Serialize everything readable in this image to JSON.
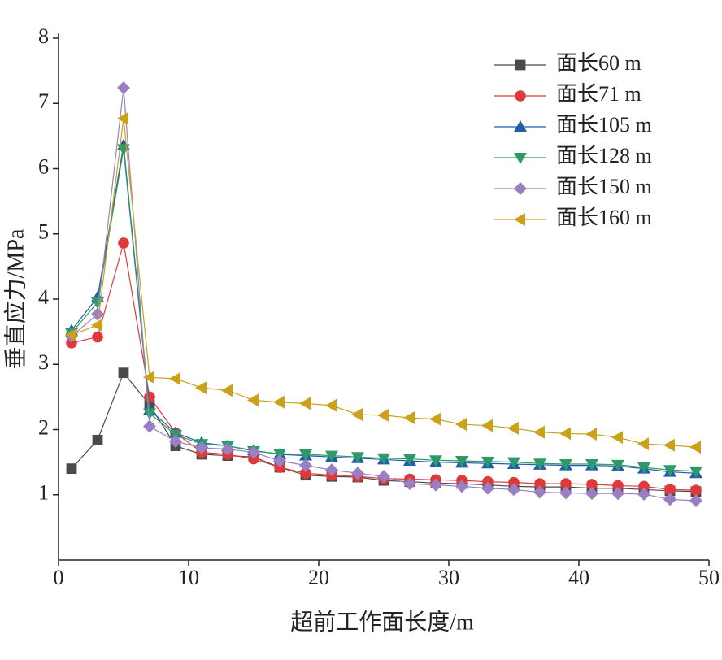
{
  "chart_data": {
    "type": "line",
    "xlabel": "超前工作面长度/m",
    "ylabel": "垂直应力/MPa",
    "x": [
      1,
      3,
      5,
      7,
      9,
      11,
      13,
      15,
      17,
      19,
      21,
      23,
      25,
      27,
      29,
      31,
      33,
      35,
      37,
      39,
      41,
      43,
      45,
      47,
      49
    ],
    "xlim": [
      0,
      50
    ],
    "xticks": [
      0,
      10,
      20,
      30,
      40,
      50
    ],
    "ylim": [
      0,
      8
    ],
    "yticks": [
      1,
      2,
      3,
      4,
      5,
      6,
      7,
      8
    ],
    "legend": "upper right",
    "series": [
      {
        "name": "面长60 m",
        "color": "#4a4a4a",
        "marker": "square",
        "values": [
          1.4,
          1.84,
          2.87,
          2.38,
          1.75,
          1.62,
          1.6,
          1.58,
          1.42,
          1.3,
          1.28,
          1.27,
          1.22,
          1.2,
          1.18,
          1.17,
          1.15,
          1.13,
          1.12,
          1.12,
          1.1,
          1.1,
          1.08,
          1.06,
          1.05
        ]
      },
      {
        "name": "面长71 m",
        "color": "#e0393b",
        "marker": "circle",
        "values": [
          3.33,
          3.42,
          4.86,
          2.5,
          1.95,
          1.65,
          1.62,
          1.55,
          1.42,
          1.33,
          1.3,
          1.28,
          1.25,
          1.24,
          1.23,
          1.22,
          1.2,
          1.19,
          1.17,
          1.17,
          1.16,
          1.14,
          1.13,
          1.08,
          1.07
        ]
      },
      {
        "name": "面长105 m",
        "color": "#1f5fa8",
        "marker": "triangle-up",
        "values": [
          3.52,
          4.03,
          6.36,
          2.3,
          1.95,
          1.8,
          1.75,
          1.68,
          1.62,
          1.6,
          1.58,
          1.56,
          1.54,
          1.52,
          1.5,
          1.49,
          1.48,
          1.47,
          1.46,
          1.45,
          1.45,
          1.44,
          1.4,
          1.35,
          1.33
        ]
      },
      {
        "name": "面长128 m",
        "color": "#2e9a6a",
        "marker": "triangle-down",
        "values": [
          3.48,
          3.95,
          6.3,
          2.25,
          1.92,
          1.78,
          1.75,
          1.67,
          1.63,
          1.62,
          1.6,
          1.58,
          1.56,
          1.55,
          1.53,
          1.52,
          1.51,
          1.5,
          1.48,
          1.47,
          1.47,
          1.46,
          1.42,
          1.38,
          1.36
        ]
      },
      {
        "name": "面长150 m",
        "color": "#9a80c2",
        "marker": "diamond",
        "values": [
          3.43,
          3.77,
          7.24,
          2.05,
          1.82,
          1.72,
          1.7,
          1.65,
          1.52,
          1.45,
          1.38,
          1.33,
          1.28,
          1.17,
          1.15,
          1.13,
          1.1,
          1.08,
          1.04,
          1.03,
          1.02,
          1.02,
          1.01,
          0.93,
          0.91
        ]
      },
      {
        "name": "面长160 m",
        "color": "#c9a11b",
        "marker": "triangle-left",
        "values": [
          3.45,
          3.6,
          6.77,
          2.8,
          2.78,
          2.64,
          2.6,
          2.45,
          2.42,
          2.4,
          2.37,
          2.23,
          2.22,
          2.18,
          2.16,
          2.08,
          2.06,
          2.02,
          1.96,
          1.94,
          1.93,
          1.88,
          1.78,
          1.76,
          1.73
        ]
      }
    ]
  }
}
